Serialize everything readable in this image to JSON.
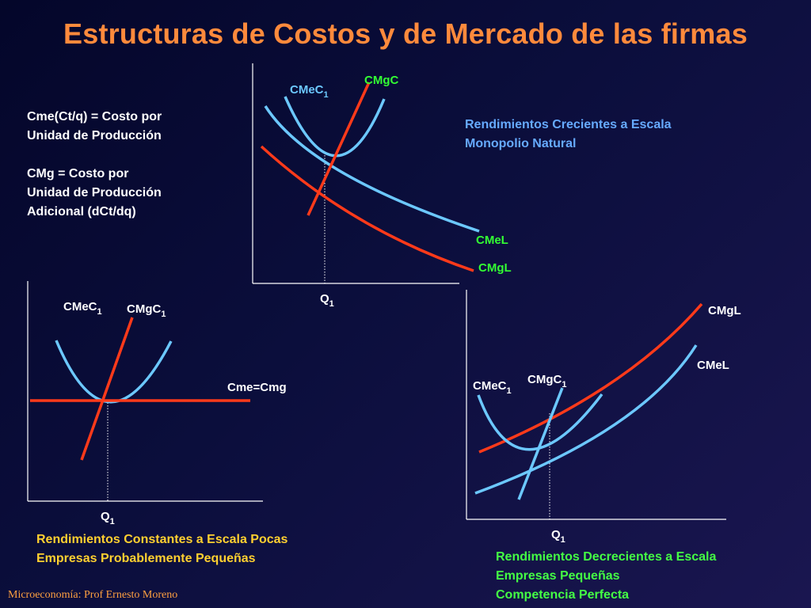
{
  "title": "Estructuras de Costos y de Mercado de las firmas",
  "definitions": [
    "Cme(Ct/q) = Costo por",
    "Unidad de Producción",
    "",
    "CMg = Costo por",
    "Unidad de Producción",
    "Adicional (dCt/dq)"
  ],
  "panel_increasing": {
    "labels": {
      "cmec": "CMeC",
      "cmec_sub": "1",
      "cmgc": "CMgC",
      "cmel": "CMeL",
      "cmgl": "CMgL",
      "q": "Q",
      "q_sub": "1"
    },
    "caption": [
      "Rendimientos Crecientes a Escala",
      "Monopolio Natural"
    ]
  },
  "panel_constant": {
    "labels": {
      "cmec": "CMeC",
      "cmec_sub": "1",
      "cmgc": "CMgC",
      "cmgc_sub": "1",
      "cme_cmg": "Cme=Cmg",
      "q": "Q",
      "q_sub": "1"
    },
    "caption": [
      "Rendimientos Constantes a Escala Pocas",
      "Empresas Probablemente Pequeñas"
    ]
  },
  "panel_decreasing": {
    "labels": {
      "cmgl": "CMgL",
      "cmel": "CMeL",
      "cmec": "CMeC",
      "cmec_sub": "1",
      "cmgc": "CMgC",
      "cmgc_sub": "1",
      "q": "Q",
      "q_sub": "1"
    },
    "caption": [
      "Rendimientos Decrecientes a Escala",
      "Empresas Pequeñas",
      "Competencia Perfecta"
    ]
  },
  "footer": "Microeconomía: Prof Ernesto Moreno",
  "colors": {
    "title": "#ff8a3c",
    "blue_curve": "#6cc8ff",
    "red_curve": "#ff3a1a",
    "green_label": "#33ff33",
    "caption_blue": "#66aaff",
    "caption_yellow": "#ffd030",
    "caption_green": "#44ff44",
    "footer": "#ffa040"
  }
}
